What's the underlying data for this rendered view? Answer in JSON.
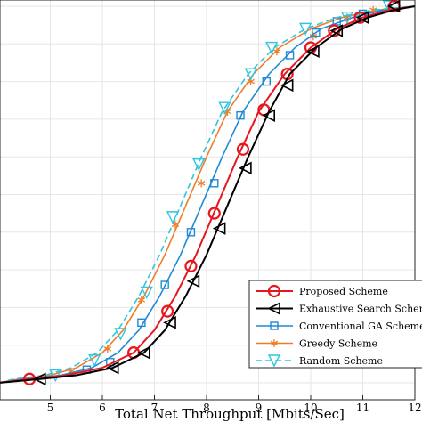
{
  "chart_data": {
    "type": "line",
    "title": "",
    "xlabel": "Total Net Throughput [Mbits/Sec]",
    "ylabel": "",
    "xlim": [
      4.0,
      12.0
    ],
    "ylim": [
      0,
      1
    ],
    "x_ticks": [
      "5",
      "6",
      "7",
      "8",
      "9",
      "10",
      "11",
      "12"
    ],
    "grid": true,
    "legend_position": "bottom-right",
    "series": [
      {
        "name": "Proposed Scheme",
        "color": "#e8161e",
        "marker": "circle",
        "line_style": "solid",
        "x": [
          4.0,
          4.6,
          5.3,
          6.0,
          6.6,
          7.0,
          7.4,
          7.8,
          8.2,
          8.6,
          9.0,
          9.5,
          10.0,
          10.5,
          11.0,
          11.5,
          12.0
        ],
        "y": [
          0.0,
          0.01,
          0.02,
          0.04,
          0.08,
          0.14,
          0.23,
          0.34,
          0.47,
          0.6,
          0.72,
          0.82,
          0.89,
          0.94,
          0.97,
          0.99,
          1.0
        ],
        "markers_x": [
          4.6,
          6.6,
          7.25,
          7.7,
          8.15,
          8.7,
          9.1,
          9.55,
          10.0,
          10.45,
          10.95,
          11.6
        ],
        "markers_y": [
          0.01,
          0.08,
          0.19,
          0.31,
          0.45,
          0.62,
          0.725,
          0.82,
          0.89,
          0.935,
          0.97,
          1.0
        ]
      },
      {
        "name": "Exhaustive Search Scheme",
        "color": "#000000",
        "marker": "left-triangle",
        "line_style": "solid",
        "x": [
          4.0,
          4.8,
          5.5,
          6.2,
          6.8,
          7.2,
          7.6,
          8.0,
          8.4,
          8.8,
          9.2,
          9.6,
          10.1,
          10.6,
          11.1,
          11.6,
          12.0
        ],
        "y": [
          0.0,
          0.01,
          0.02,
          0.04,
          0.08,
          0.14,
          0.23,
          0.34,
          0.47,
          0.6,
          0.72,
          0.82,
          0.89,
          0.94,
          0.97,
          0.99,
          1.0
        ],
        "markers_x": [
          4.8,
          6.2,
          6.8,
          7.3,
          7.75,
          8.25,
          8.75,
          9.2,
          9.55,
          10.05,
          10.5,
          11.0,
          11.6
        ],
        "markers_y": [
          0.01,
          0.04,
          0.08,
          0.16,
          0.27,
          0.41,
          0.57,
          0.71,
          0.79,
          0.88,
          0.935,
          0.97,
          1.0
        ]
      },
      {
        "name": "Conventional GA Scheme",
        "color": "#1e8ad6",
        "marker": "square",
        "line_style": "solid",
        "x": [
          4.0,
          4.5,
          5.2,
          5.8,
          6.3,
          6.7,
          7.1,
          7.5,
          7.9,
          8.3,
          8.7,
          9.2,
          9.7,
          10.2,
          10.8,
          11.4,
          12.0
        ],
        "y": [
          0.0,
          0.01,
          0.02,
          0.04,
          0.08,
          0.14,
          0.23,
          0.34,
          0.47,
          0.6,
          0.72,
          0.82,
          0.89,
          0.94,
          0.97,
          0.99,
          1.0
        ],
        "markers_x": [
          5.7,
          6.15,
          6.75,
          7.2,
          7.7,
          8.15,
          8.65,
          9.15,
          9.6,
          10.1,
          10.5,
          11.0
        ],
        "markers_y": [
          0.035,
          0.055,
          0.16,
          0.26,
          0.4,
          0.53,
          0.71,
          0.8,
          0.87,
          0.93,
          0.96,
          0.98
        ]
      },
      {
        "name": "Greedy Scheme",
        "color": "#f07c28",
        "marker": "asterisk",
        "line_style": "solid",
        "x": [
          4.0,
          4.4,
          5.0,
          5.5,
          6.0,
          6.4,
          6.8,
          7.2,
          7.6,
          8.0,
          8.4,
          8.9,
          9.4,
          10.0,
          10.6,
          11.3,
          12.0
        ],
        "y": [
          0.0,
          0.01,
          0.02,
          0.04,
          0.08,
          0.14,
          0.23,
          0.34,
          0.47,
          0.6,
          0.72,
          0.82,
          0.89,
          0.94,
          0.97,
          0.99,
          1.0
        ],
        "markers_x": [
          5.4,
          6.1,
          6.75,
          7.4,
          7.9,
          8.4,
          8.85,
          9.35,
          10.05,
          10.7,
          11.2
        ],
        "markers_y": [
          0.03,
          0.09,
          0.22,
          0.42,
          0.53,
          0.72,
          0.8,
          0.88,
          0.92,
          0.97,
          0.99
        ]
      },
      {
        "name": "Random Scheme",
        "color": "#2ec6e0",
        "marker": "down-triangle",
        "line_style": "dashed",
        "x": [
          4.0,
          4.3,
          4.9,
          5.4,
          5.9,
          6.3,
          6.7,
          7.1,
          7.5,
          7.9,
          8.3,
          8.8,
          9.3,
          9.9,
          10.5,
          11.2,
          12.0
        ],
        "y": [
          0.0,
          0.01,
          0.02,
          0.04,
          0.08,
          0.14,
          0.23,
          0.34,
          0.47,
          0.6,
          0.72,
          0.82,
          0.89,
          0.94,
          0.97,
          0.99,
          1.0
        ],
        "markers_x": [
          5.1,
          5.85,
          6.35,
          6.85,
          7.35,
          7.85,
          8.35,
          8.85,
          9.25,
          9.9,
          10.7,
          11.5
        ],
        "markers_y": [
          0.02,
          0.06,
          0.13,
          0.24,
          0.44,
          0.58,
          0.73,
          0.82,
          0.89,
          0.94,
          0.97,
          1.0
        ]
      }
    ]
  }
}
